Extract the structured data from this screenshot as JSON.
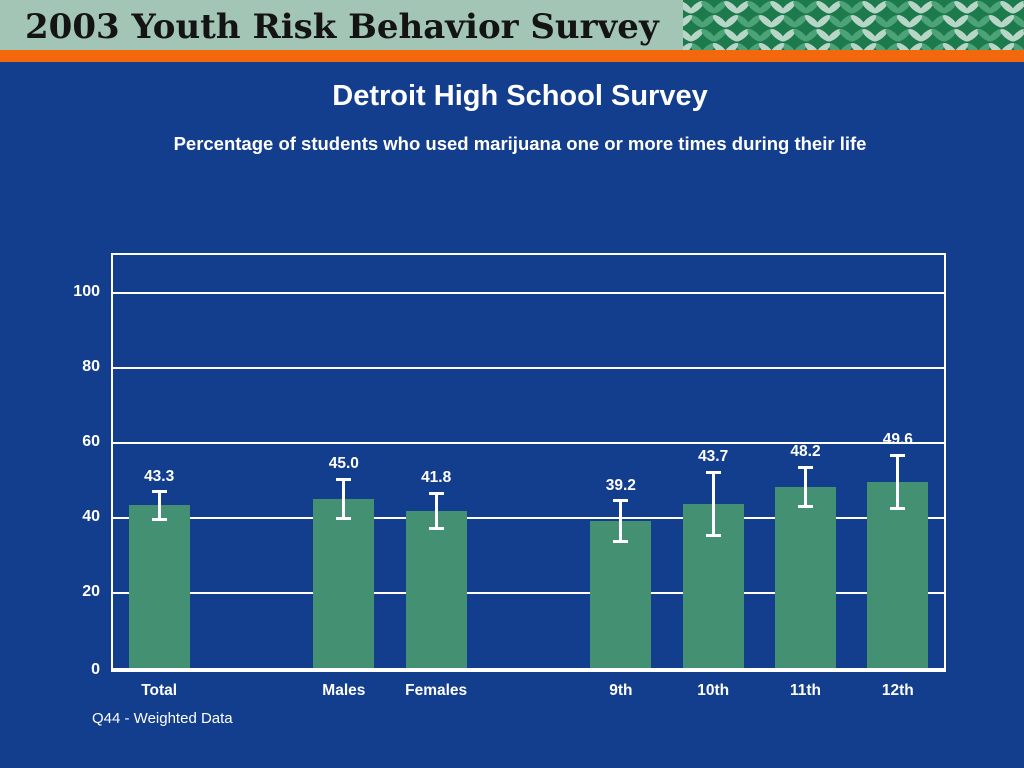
{
  "header": {
    "title": "2003 Youth Risk Behavior Survey"
  },
  "slide": {
    "title": "Detroit High School Survey",
    "subtitle": "Percentage of students who used marijuana one or more times during their life",
    "footnote": "Q44 - Weighted Data"
  },
  "colors": {
    "background": "#133d8d",
    "header_bg": "#a3c5b5",
    "header_text": "#141414",
    "accent_stripe": "#f4680d",
    "pattern_bg": "#1d7a4c",
    "pattern_leaf_light": "#b8d6c8",
    "pattern_leaf_mid": "#4da378",
    "bar": "#449072",
    "text": "#ffffff"
  },
  "chart_data": {
    "type": "bar",
    "categories": [
      "Total",
      "Males",
      "Females",
      "9th",
      "10th",
      "11th",
      "12th"
    ],
    "values": [
      43.3,
      45.0,
      41.8,
      39.2,
      43.7,
      48.2,
      49.6
    ],
    "error": [
      3.7,
      5.3,
      4.7,
      5.4,
      8.5,
      5.3,
      7.1
    ],
    "slot_indices": [
      0,
      2,
      3,
      5,
      6,
      7,
      8
    ],
    "num_slots": 9,
    "ylim": [
      0,
      110
    ],
    "yticks": [
      0,
      20,
      40,
      60,
      80,
      100
    ],
    "grid": true,
    "bar_color": "#449072",
    "error_bar_color": "#ffffff"
  }
}
